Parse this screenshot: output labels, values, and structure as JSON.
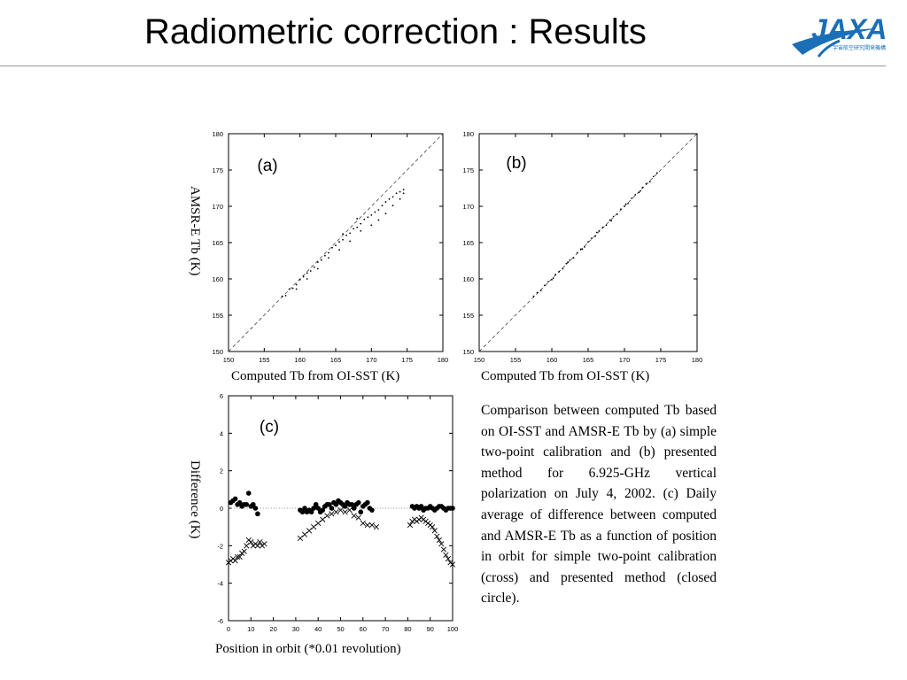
{
  "slide": {
    "title": "Radiometric correction : Results",
    "logo_text": "JAXA",
    "logo_subtext": "宇宙航空研究開発機構"
  },
  "panel_ab": {
    "ylabel": "AMSR-E Tb (K)",
    "xlabel_a": "Computed Tb from OI-SST (K)",
    "xlabel_b": "Computed Tb from OI-SST (K)"
  },
  "panel_c": {
    "ylabel": "Difference (K)",
    "xlabel": "Position in orbit (*0.01 revolution)"
  },
  "caption": "Comparison between computed Tb based on OI-SST and AMSR-E Tb by (a) simple two-point calibration and (b) presented method for 6.925-GHz vertical polarization on July 4, 2002. (c) Daily average of difference between computed and AMSR-E Tb as a function of position in orbit for simple two-point calibration (cross) and presented method (closed circle).",
  "colors": {
    "title": "#000000",
    "rule": "#9a9a9a",
    "logo": "#1a6fb6",
    "points": "#000000"
  },
  "chart_data": [
    {
      "type": "scatter",
      "panel_label": "(a)",
      "xlim": [
        150,
        180
      ],
      "ylim": [
        150,
        180
      ],
      "ticks": [
        150,
        155,
        160,
        165,
        170,
        175,
        180
      ],
      "reference_line": "1:1 dashed",
      "x": [
        157.5,
        158.0,
        158.5,
        159.0,
        159.5,
        160.0,
        160.5,
        161.0,
        161.5,
        162.0,
        162.5,
        163.0,
        163.5,
        164.0,
        164.5,
        165.0,
        165.5,
        166.0,
        166.5,
        167.0,
        167.5,
        168.0,
        168.5,
        169.0,
        169.5,
        170.0,
        170.5,
        171.0,
        171.5,
        172.0,
        172.5,
        173.0,
        173.5,
        174.0,
        174.5,
        159.5,
        161.0,
        162.5,
        164.0,
        165.5,
        167.0,
        168.5,
        170.0,
        171.0,
        172.0,
        173.0,
        174.0,
        174.5,
        166.0,
        168.0
      ],
      "y": [
        157.6,
        157.7,
        158.6,
        158.7,
        159.2,
        159.9,
        160.3,
        160.8,
        161.1,
        161.6,
        162.3,
        162.6,
        163.2,
        163.6,
        164.3,
        164.6,
        165.1,
        165.4,
        166.0,
        166.3,
        166.9,
        167.1,
        167.6,
        168.2,
        168.5,
        168.8,
        169.2,
        169.5,
        170.1,
        170.6,
        171.0,
        171.3,
        171.8,
        172.0,
        172.3,
        158.6,
        160.0,
        161.4,
        162.9,
        164.0,
        165.2,
        166.6,
        167.4,
        168.1,
        169.0,
        170.1,
        171.0,
        171.8,
        166.2,
        168.3
      ],
      "xlabel": "Computed Tb from OI-SST (K)",
      "ylabel": "AMSR-E Tb (K)"
    },
    {
      "type": "scatter",
      "panel_label": "(b)",
      "xlim": [
        150,
        180
      ],
      "ylim": [
        150,
        180
      ],
      "ticks": [
        150,
        155,
        160,
        165,
        170,
        175,
        180
      ],
      "reference_line": "1:1 dashed",
      "x": [
        157.5,
        158.0,
        158.5,
        159.0,
        159.5,
        160.0,
        160.5,
        161.0,
        161.5,
        162.0,
        162.5,
        163.0,
        163.5,
        164.0,
        164.5,
        165.0,
        165.5,
        166.0,
        166.5,
        167.0,
        167.5,
        168.0,
        168.5,
        169.0,
        169.5,
        170.0,
        170.5,
        171.0,
        171.5,
        172.0,
        172.5,
        173.0,
        173.5,
        174.0,
        174.5,
        160.2,
        162.2,
        164.2,
        166.2,
        168.2,
        170.2,
        172.2
      ],
      "y": [
        157.6,
        158.1,
        158.4,
        159.1,
        159.6,
        159.9,
        160.6,
        161.0,
        161.4,
        162.1,
        162.6,
        162.9,
        163.6,
        164.1,
        164.4,
        165.1,
        165.6,
        165.9,
        166.6,
        167.1,
        167.4,
        168.1,
        168.6,
        168.9,
        169.6,
        170.0,
        170.4,
        171.1,
        171.6,
        171.9,
        172.6,
        173.1,
        173.4,
        174.1,
        174.6,
        160.1,
        162.3,
        164.1,
        166.4,
        168.0,
        170.3,
        172.1
      ],
      "xlabel": "Computed Tb from OI-SST (K)",
      "ylabel": "AMSR-E Tb (K)"
    },
    {
      "type": "scatter",
      "panel_label": "(c)",
      "xlim": [
        0,
        100
      ],
      "ylim": [
        -6,
        6
      ],
      "xticks": [
        0,
        10,
        20,
        30,
        40,
        50,
        60,
        70,
        80,
        90,
        100
      ],
      "yticks": [
        -6,
        -4,
        -2,
        0,
        2,
        4,
        6
      ],
      "zero_line": "dotted",
      "xlabel": "Position in orbit (*0.01 revolution)",
      "ylabel": "Difference (K)",
      "series": [
        {
          "marker": "closed circle",
          "x": [
            1,
            2,
            3,
            4,
            5,
            6,
            7,
            8,
            9,
            10,
            11,
            12,
            13,
            32,
            33,
            34,
            35,
            36,
            37,
            38,
            39,
            40,
            41,
            42,
            43,
            44,
            45,
            46,
            47,
            48,
            49,
            50,
            51,
            52,
            53,
            54,
            55,
            56,
            57,
            58,
            59,
            60,
            61,
            62,
            63,
            64,
            82,
            83,
            84,
            85,
            86,
            87,
            88,
            89,
            90,
            91,
            92,
            93,
            94,
            95,
            96,
            97,
            98,
            99,
            100
          ],
          "y": [
            0.3,
            0.4,
            0.5,
            0.2,
            0.3,
            0.1,
            0.2,
            0.2,
            0.8,
            0.1,
            0.2,
            0.0,
            -0.3,
            -0.1,
            -0.2,
            0.0,
            -0.2,
            -0.1,
            -0.2,
            0.0,
            0.2,
            0.0,
            -0.2,
            -0.1,
            0.1,
            0.2,
            0.2,
            0.0,
            0.3,
            0.2,
            0.4,
            0.3,
            0.2,
            0.1,
            0.3,
            0.2,
            0.2,
            0.0,
            0.2,
            0.3,
            -0.2,
            0.1,
            0.2,
            0.3,
            0.0,
            -0.1,
            0.1,
            0.0,
            0.1,
            0.0,
            0.1,
            -0.1,
            0.0,
            0.0,
            0.1,
            0.0,
            -0.1,
            0.0,
            0.1,
            0.1,
            0.0,
            -0.1,
            0.0,
            0.0,
            0.0
          ]
        },
        {
          "marker": "cross",
          "x": [
            0,
            1,
            2,
            3,
            4,
            5,
            6,
            7,
            8,
            9,
            10,
            11,
            12,
            13,
            14,
            15,
            16,
            32,
            34,
            36,
            38,
            40,
            42,
            44,
            46,
            48,
            50,
            52,
            54,
            56,
            58,
            60,
            62,
            64,
            66,
            81,
            82,
            83,
            84,
            85,
            86,
            87,
            88,
            89,
            90,
            91,
            92,
            93,
            94,
            95,
            96,
            97,
            98,
            99,
            100
          ],
          "y": [
            -2.9,
            -2.8,
            -2.7,
            -2.8,
            -2.6,
            -2.6,
            -2.4,
            -2.3,
            -2.0,
            -1.7,
            -1.8,
            -2.0,
            -1.9,
            -2.0,
            -1.8,
            -2.0,
            -1.9,
            -1.6,
            -1.4,
            -1.2,
            -1.0,
            -0.8,
            -0.6,
            -0.4,
            -0.3,
            -0.2,
            -0.1,
            -0.2,
            -0.1,
            -0.4,
            -0.5,
            -0.8,
            -0.9,
            -0.9,
            -1.0,
            -0.9,
            -0.7,
            -0.6,
            -0.7,
            -0.6,
            -0.5,
            -0.6,
            -0.7,
            -0.8,
            -0.9,
            -1.0,
            -1.2,
            -1.5,
            -1.7,
            -1.9,
            -2.2,
            -2.5,
            -2.7,
            -2.9,
            -3.0
          ]
        }
      ]
    }
  ]
}
